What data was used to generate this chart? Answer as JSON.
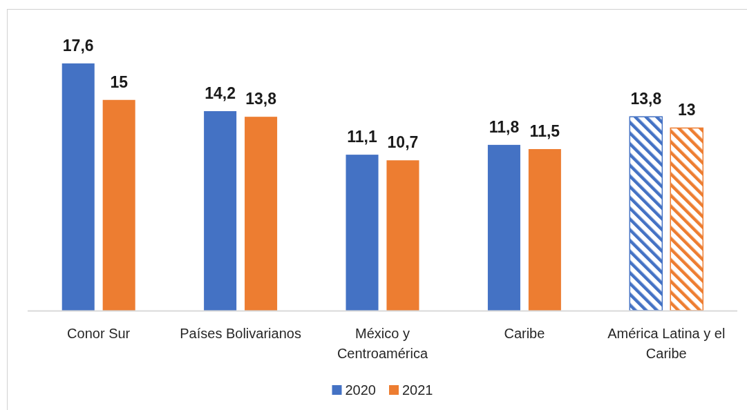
{
  "chart_data": {
    "type": "bar",
    "categories": [
      "Conor Sur",
      "Países Bolivarianos",
      "México y Centroamérica",
      "Caribe",
      "América Latina y el Caribe"
    ],
    "series": [
      {
        "name": "2020",
        "color": "#4472c4",
        "values": [
          17.6,
          14.2,
          11.1,
          11.8,
          13.8
        ],
        "value_labels": [
          "17,6",
          "14,2",
          "11,1",
          "11,8",
          "13,8"
        ]
      },
      {
        "name": "2021",
        "color": "#ed7d31",
        "values": [
          15,
          13.8,
          10.7,
          11.5,
          13
        ],
        "value_labels": [
          "15",
          "13,8",
          "10,7",
          "11,5",
          "13"
        ]
      }
    ],
    "legend": "bottom"
  }
}
